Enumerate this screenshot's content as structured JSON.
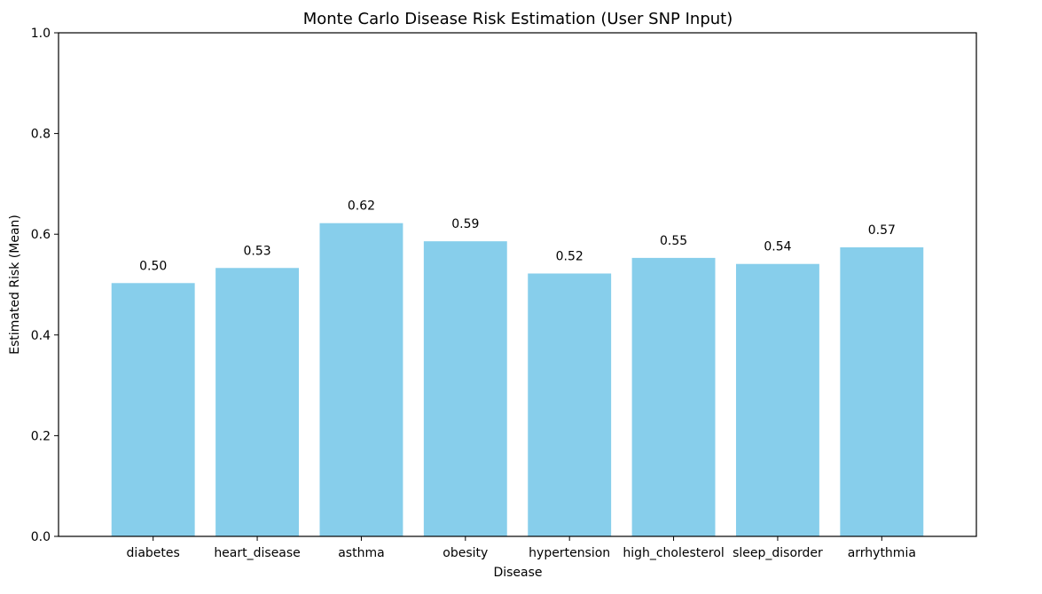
{
  "chart_data": {
    "type": "bar",
    "title": "Monte Carlo Disease Risk Estimation (User SNP Input)",
    "xlabel": "Disease",
    "ylabel": "Estimated Risk (Mean)",
    "categories": [
      "diabetes",
      "heart_disease",
      "asthma",
      "obesity",
      "hypertension",
      "high_cholesterol",
      "sleep_disorder",
      "arrhythmia"
    ],
    "values": [
      0.503,
      0.533,
      0.622,
      0.586,
      0.522,
      0.553,
      0.541,
      0.574
    ],
    "value_labels": [
      "0.50",
      "0.53",
      "0.62",
      "0.59",
      "0.52",
      "0.55",
      "0.54",
      "0.57"
    ],
    "ylim": [
      0,
      1.0
    ],
    "yticks": [
      0.0,
      0.2,
      0.4,
      0.6,
      0.8,
      1.0
    ],
    "ytick_labels": [
      "0.0",
      "0.2",
      "0.4",
      "0.6",
      "0.8",
      "1.0"
    ],
    "bar_color": "#87ceeb",
    "grid": false,
    "legend": null
  }
}
